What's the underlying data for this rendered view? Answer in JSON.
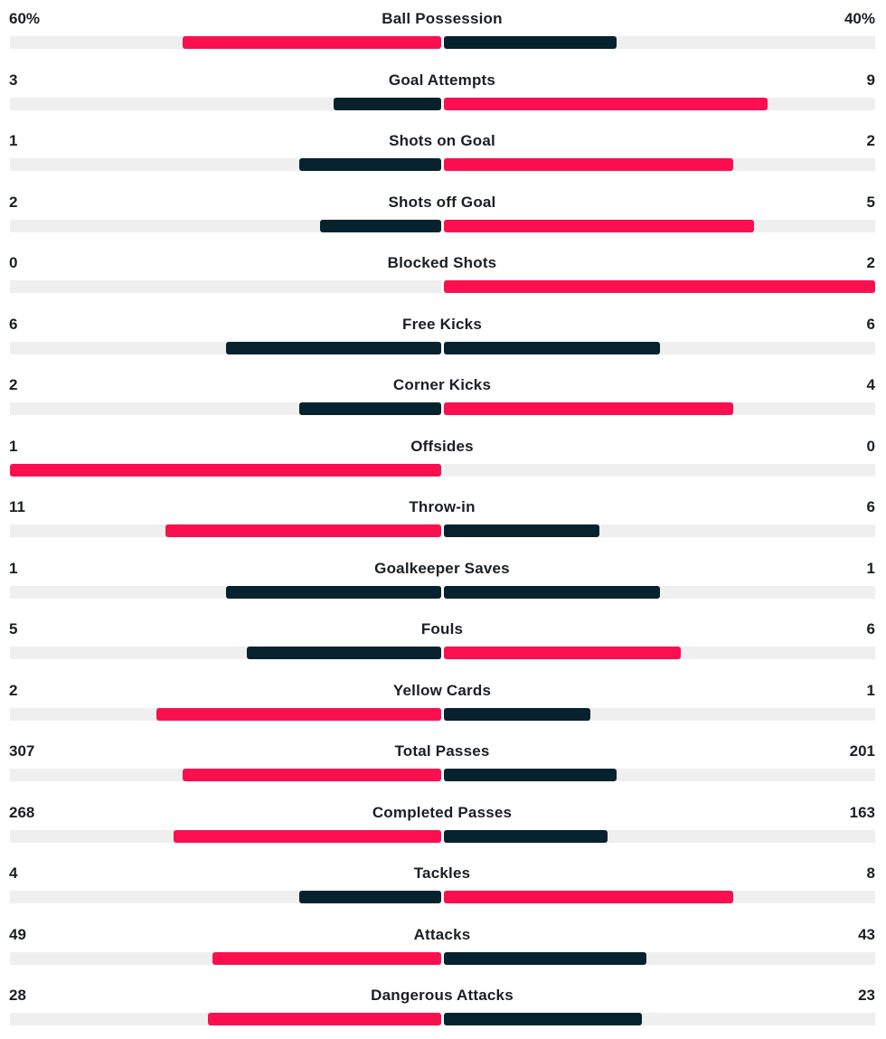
{
  "colors": {
    "higher": "#fb0f4f",
    "lower": "#05222e",
    "track": "#efefef"
  },
  "stats": [
    {
      "label": "Ball Possession",
      "home": "60%",
      "away": "40%",
      "home_share": 0.6,
      "away_share": 0.4
    },
    {
      "label": "Goal Attempts",
      "home": "3",
      "away": "9",
      "home_share": 0.25,
      "away_share": 0.75
    },
    {
      "label": "Shots on Goal",
      "home": "1",
      "away": "2",
      "home_share": 0.33,
      "away_share": 0.67
    },
    {
      "label": "Shots off Goal",
      "home": "2",
      "away": "5",
      "home_share": 0.28,
      "away_share": 0.72
    },
    {
      "label": "Blocked Shots",
      "home": "0",
      "away": "2",
      "home_share": 0.0,
      "away_share": 1.0
    },
    {
      "label": "Free Kicks",
      "home": "6",
      "away": "6",
      "home_share": 0.5,
      "away_share": 0.5
    },
    {
      "label": "Corner Kicks",
      "home": "2",
      "away": "4",
      "home_share": 0.33,
      "away_share": 0.67
    },
    {
      "label": "Offsides",
      "home": "1",
      "away": "0",
      "home_share": 1.0,
      "away_share": 0.0
    },
    {
      "label": "Throw-in",
      "home": "11",
      "away": "6",
      "home_share": 0.64,
      "away_share": 0.36
    },
    {
      "label": "Goalkeeper Saves",
      "home": "1",
      "away": "1",
      "home_share": 0.5,
      "away_share": 0.5
    },
    {
      "label": "Fouls",
      "home": "5",
      "away": "6",
      "home_share": 0.45,
      "away_share": 0.55
    },
    {
      "label": "Yellow Cards",
      "home": "2",
      "away": "1",
      "home_share": 0.66,
      "away_share": 0.34
    },
    {
      "label": "Total Passes",
      "home": "307",
      "away": "201",
      "home_share": 0.6,
      "away_share": 0.4
    },
    {
      "label": "Completed Passes",
      "home": "268",
      "away": "163",
      "home_share": 0.62,
      "away_share": 0.38
    },
    {
      "label": "Tackles",
      "home": "4",
      "away": "8",
      "home_share": 0.33,
      "away_share": 0.67
    },
    {
      "label": "Attacks",
      "home": "49",
      "away": "43",
      "home_share": 0.53,
      "away_share": 0.47
    },
    {
      "label": "Dangerous Attacks",
      "home": "28",
      "away": "23",
      "home_share": 0.54,
      "away_share": 0.46
    }
  ]
}
